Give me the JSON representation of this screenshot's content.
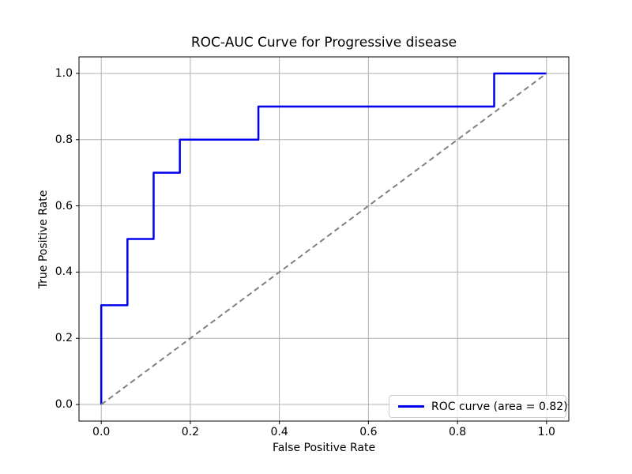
{
  "chart_data": {
    "type": "line",
    "title": "ROC-AUC Curve for Progressive disease",
    "xlabel": "False Positive Rate",
    "ylabel": "True Positive Rate",
    "xlim": [
      -0.05,
      1.05
    ],
    "ylim": [
      -0.05,
      1.05
    ],
    "grid": true,
    "xticks": [
      0.0,
      0.2,
      0.4,
      0.6,
      0.8,
      1.0
    ],
    "yticks": [
      0.0,
      0.2,
      0.4,
      0.6,
      0.8,
      1.0
    ],
    "xtick_labels": [
      "0.0",
      "0.2",
      "0.4",
      "0.6",
      "0.8",
      "1.0"
    ],
    "ytick_labels": [
      "0.0",
      "0.2",
      "0.4",
      "0.6",
      "0.8",
      "1.0"
    ],
    "series": [
      {
        "name": "roc-curve",
        "color": "#0000ee",
        "style": "solid",
        "width": 2.5,
        "points": [
          [
            0.0,
            0.0
          ],
          [
            0.0,
            0.3
          ],
          [
            0.0588,
            0.3
          ],
          [
            0.0588,
            0.5
          ],
          [
            0.1176,
            0.5
          ],
          [
            0.1176,
            0.7
          ],
          [
            0.1765,
            0.7
          ],
          [
            0.1765,
            0.8
          ],
          [
            0.3529,
            0.8
          ],
          [
            0.3529,
            0.9
          ],
          [
            0.8824,
            0.9
          ],
          [
            0.8824,
            1.0
          ],
          [
            1.0,
            1.0
          ]
        ]
      },
      {
        "name": "chance-diagonal",
        "color": "#808080",
        "style": "dashed",
        "width": 2,
        "points": [
          [
            0.0,
            0.0
          ],
          [
            1.0,
            1.0
          ]
        ]
      }
    ],
    "auc": 0.82,
    "legend": {
      "position": "lower right",
      "entries": [
        {
          "label": "ROC curve (area = 0.82)",
          "color": "#0000ee"
        }
      ]
    },
    "colors": {
      "grid": "#b0b0b0",
      "spine": "#000000",
      "background": "#ffffff",
      "tick": "#000000"
    }
  }
}
